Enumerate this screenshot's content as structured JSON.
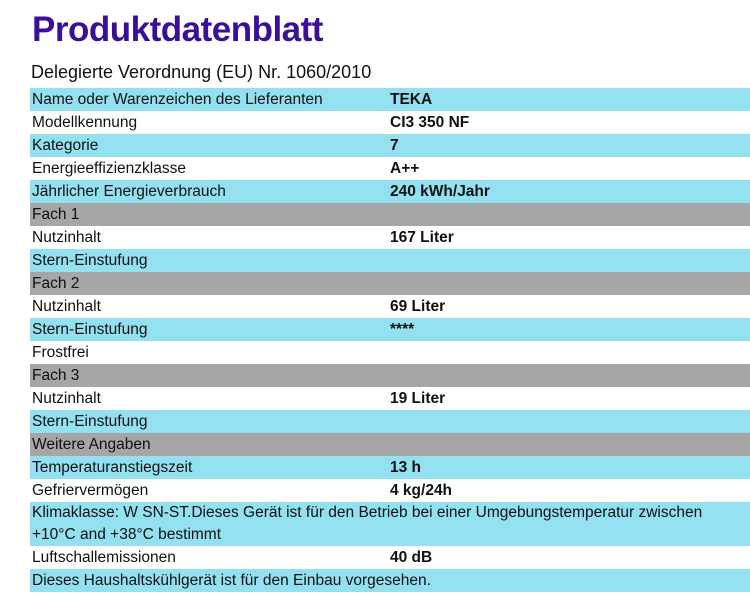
{
  "title": "Produktdatenblatt",
  "subtitle": "Delegierte Verordnung (EU) Nr. 1060/2010",
  "rows": [
    {
      "label": "Name oder Warenzeichen des Lieferanten",
      "value": "TEKA",
      "style": "cyan"
    },
    {
      "label": "Modellkennung",
      "value": "CI3 350 NF",
      "style": "white"
    },
    {
      "label": "Kategorie",
      "value": "7",
      "style": "cyan"
    },
    {
      "label": "Energieeffizienzklasse",
      "value": "A++",
      "style": "white"
    },
    {
      "label": "Jährlicher Energieverbrauch",
      "value": "240 kWh/Jahr",
      "style": "cyan"
    },
    {
      "label": "Fach 1",
      "value": "",
      "style": "gray"
    },
    {
      "label": "Nutzinhalt",
      "value": "167 Liter",
      "style": "white"
    },
    {
      "label": "Stern-Einstufung",
      "value": "",
      "style": "cyan"
    },
    {
      "label": "Fach 2",
      "value": "",
      "style": "gray"
    },
    {
      "label": "Nutzinhalt",
      "value": "69 Liter",
      "style": "white"
    },
    {
      "label": "Stern-Einstufung",
      "value": "****",
      "style": "cyan"
    },
    {
      "label": "Frostfrei",
      "value": "",
      "style": "white"
    },
    {
      "label": "Fach 3",
      "value": "",
      "style": "gray"
    },
    {
      "label": "Nutzinhalt",
      "value": "19 Liter",
      "style": "white"
    },
    {
      "label": "Stern-Einstufung",
      "value": "",
      "style": "cyan"
    },
    {
      "label": "Weitere Angaben",
      "value": "",
      "style": "gray"
    },
    {
      "label": "Temperaturanstiegszeit",
      "value": "13 h",
      "style": "cyan"
    },
    {
      "label": "Gefriervermögen",
      "value": "4 kg/24h",
      "style": "white"
    },
    {
      "label": "Klimaklasse: W SN-ST.Dieses Gerät ist für den Betrieb bei einer Umgebungstemperatur zwischen +10°C and +38°C bestimmt",
      "value": "",
      "style": "cyan tall"
    },
    {
      "label": "Luftschallemissionen",
      "value": "40 dB",
      "style": "white"
    },
    {
      "label": "Dieses Haushaltskühlgerät ist für den Einbau vorgesehen.",
      "value": "",
      "style": "cyan full"
    }
  ]
}
